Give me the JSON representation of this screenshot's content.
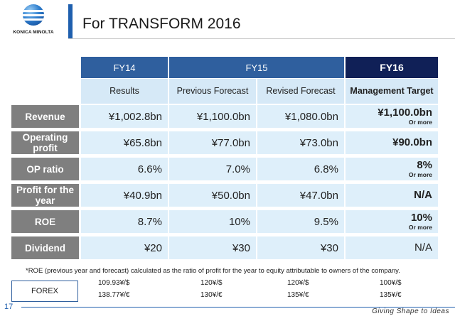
{
  "header": {
    "logo_text": "KONICA MINOLTA",
    "title": "For TRANSFORM 2016"
  },
  "table": {
    "fy14": "FY14",
    "fy15": "FY15",
    "fy16": "FY16",
    "col_results": "Results",
    "col_previous": "Previous Forecast",
    "col_revised": "Revised Forecast",
    "col_target": "Management Target",
    "rows": [
      {
        "label": "Revenue",
        "results": "¥1,002.8bn",
        "previous": "¥1,100.0bn",
        "revised": "¥1,080.0bn",
        "target": "¥1,100.0bn",
        "target_note": "Or more"
      },
      {
        "label": "Operating profit",
        "results": "¥65.8bn",
        "previous": "¥77.0bn",
        "revised": "¥73.0bn",
        "target": "¥90.0bn",
        "target_note": ""
      },
      {
        "label": "OP ratio",
        "results": "6.6%",
        "previous": "7.0%",
        "revised": "6.8%",
        "target": "8%",
        "target_note": "Or more"
      },
      {
        "label": "Profit for the year",
        "results": "¥40.9bn",
        "previous": "¥50.0bn",
        "revised": "¥47.0bn",
        "target": "N/A",
        "target_note": ""
      },
      {
        "label": "ROE",
        "results": "8.7%",
        "previous": "10%",
        "revised": "9.5%",
        "target": "10%",
        "target_note": "Or more"
      },
      {
        "label": "Dividend",
        "results": "¥20",
        "previous": "¥30",
        "revised": "¥30",
        "target": "N/A",
        "target_note": ""
      }
    ]
  },
  "note": "*ROE (previous year and forecast) calculated as the ratio of profit for the year to equity attributable to owners of the company.",
  "forex": {
    "label": "FOREX",
    "usd": [
      "109.93¥/$",
      "120¥/$",
      "120¥/$",
      "100¥/$"
    ],
    "eur": [
      "138.77¥/€",
      "130¥/€",
      "135¥/€",
      "135¥/€"
    ]
  },
  "footer": {
    "page_number": "17",
    "tagline": "Giving Shape to Ideas"
  }
}
